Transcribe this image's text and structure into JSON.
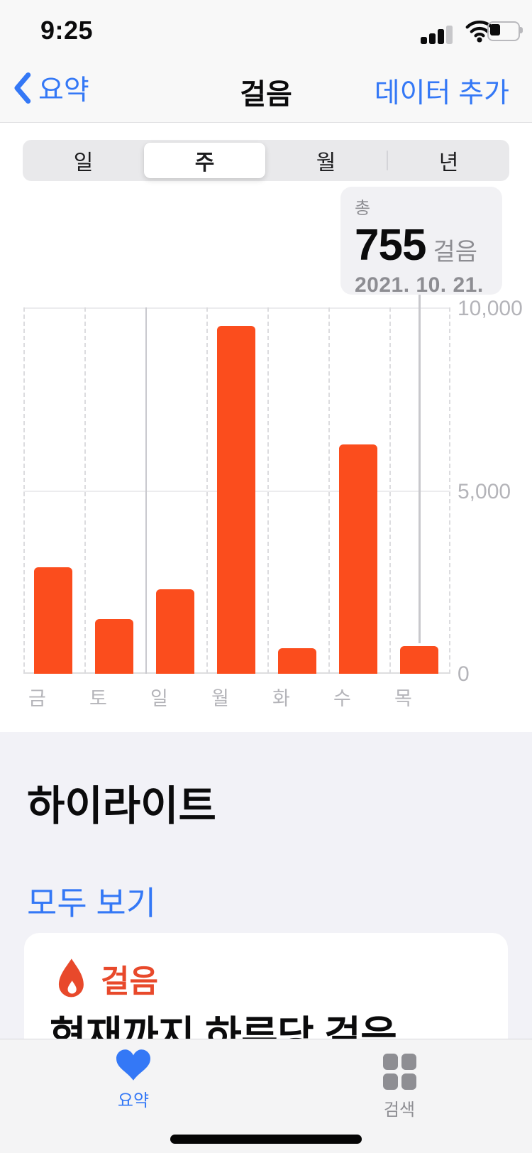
{
  "status_bar": {
    "time": "9:25"
  },
  "nav": {
    "back_label": "요약",
    "title": "걸음",
    "add_data_label": "데이터 추가"
  },
  "segmented_control": {
    "options": [
      "일",
      "주",
      "월",
      "년"
    ],
    "selected_index": 1
  },
  "tooltip": {
    "label": "총",
    "value": "755",
    "unit": "걸음",
    "date": "2021. 10. 21."
  },
  "chart_data": {
    "type": "bar",
    "categories": [
      "금",
      "토",
      "일",
      "월",
      "화",
      "수",
      "목"
    ],
    "values": [
      2900,
      1500,
      2300,
      9500,
      700,
      6250,
      755
    ],
    "selected_index": 6,
    "selected_total": 755,
    "ylim": [
      0,
      10000
    ],
    "y_tick_labels": {
      "top": "10,000",
      "mid": "5,000",
      "bottom": "0"
    },
    "bar_color": "#fb4d1d",
    "solid_gridline_index": 2,
    "grid": "dashed-vertical, solid-horizontal",
    "legend": "none",
    "title": "",
    "xlabel": "",
    "ylabel": ""
  },
  "highlights": {
    "title": "하이라이트",
    "see_all_label": "모두 보기",
    "card": {
      "category": "걸음",
      "headline": "현재까지 하루당 걸음"
    }
  },
  "tab_bar": {
    "tabs": [
      {
        "label": "요약",
        "active": true
      },
      {
        "label": "검색",
        "active": false
      }
    ]
  }
}
